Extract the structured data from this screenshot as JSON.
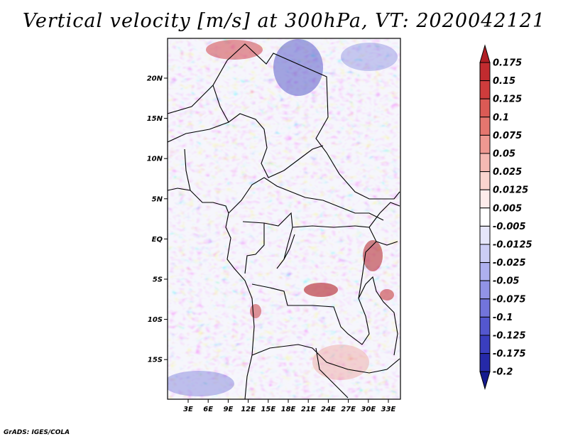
{
  "title": "Vertical velocity [m/s] at 300hPa, VT: 2020042121",
  "footer": "GrADS: IGES/COLA",
  "map": {
    "lat_labels": [
      "20N",
      "15N",
      "10N",
      "5N",
      "EQ",
      "5S",
      "10S",
      "15S"
    ],
    "lon_labels": [
      "3E",
      "6E",
      "9E",
      "12E",
      "15E",
      "18E",
      "21E",
      "24E",
      "27E",
      "30E",
      "33E"
    ]
  },
  "colorbar": {
    "labels": [
      "0.175",
      "0.15",
      "0.125",
      "0.1",
      "0.075",
      "0.05",
      "0.025",
      "0.0125",
      "0.005",
      "-0.005",
      "-0.0125",
      "-0.025",
      "-0.05",
      "-0.075",
      "-0.1",
      "-0.125",
      "-0.175",
      "-0.2"
    ],
    "colors": [
      "#b01e24",
      "#c12b2f",
      "#cf3c3c",
      "#db5a55",
      "#e5766f",
      "#ee9891",
      "#f5b9b3",
      "#fad4cf",
      "#fdeceb",
      "#ffffff",
      "#e6e6fa",
      "#cccdf5",
      "#aeb0ef",
      "#9193e6",
      "#7274db",
      "#5457cf",
      "#3a3ebf",
      "#2529a8",
      "#151a8f"
    ]
  }
}
